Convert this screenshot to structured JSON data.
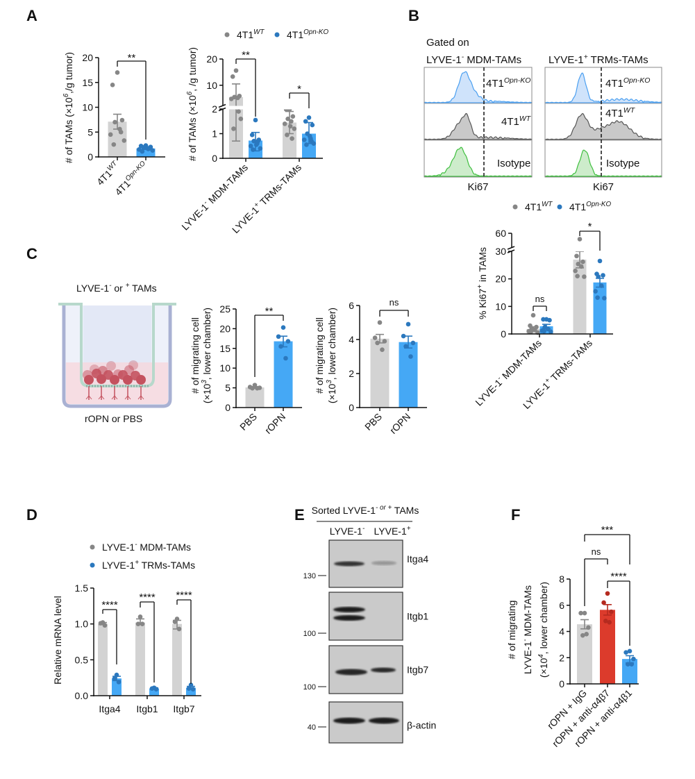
{
  "panels": {
    "A": "A",
    "B": "B",
    "C": "C",
    "D": "D",
    "E": "E",
    "F": "F"
  },
  "colors": {
    "wt": {
      "bar": "#d3d3d3",
      "dot": "#868686"
    },
    "ko": {
      "bar": "#45a8f5",
      "dot": "#2b78be"
    },
    "red": {
      "bar": "#dc3b2c",
      "dot": "#b52a1f"
    }
  },
  "legend": {
    "wt": [
      "4T1",
      "WT"
    ],
    "ko": [
      "4T1",
      "Opn-KO"
    ]
  },
  "flow": {
    "gated_on": "Gated on",
    "left_title": [
      "LYVE-1",
      "-",
      " MDM-TAMs"
    ],
    "right_title": [
      "LYVE-1",
      "+",
      " TRMs-TAMs"
    ],
    "rows": {
      "ko": [
        "4T1",
        "Opn-KO"
      ],
      "wt": [
        "4T1",
        "WT"
      ],
      "iso": "Isotype"
    },
    "xlabel": "Ki67"
  },
  "transwell": {
    "top": [
      "LYVE-1",
      "-",
      " or ",
      "+",
      " TAMs"
    ],
    "bottom": "rOPN or PBS"
  },
  "d_legend": [
    [
      "LYVE-1",
      "-",
      " MDM-TAMs"
    ],
    [
      "LYVE-1",
      "+",
      " TRMs-TAMs"
    ]
  ],
  "western": {
    "header": [
      "Sorted LYVE-1",
      "- or +",
      " TAMs"
    ],
    "lanes": [
      [
        "LYVE-1",
        "-"
      ],
      [
        "LYVE-1",
        "+"
      ]
    ],
    "proteins": [
      "Itga4",
      "Itgb1",
      "Itgb7",
      "β-actin"
    ],
    "markers": [
      "130",
      "100",
      "100",
      "40"
    ]
  },
  "chart_data": [
    {
      "id": "A1",
      "type": "bar",
      "ylabel": [
        [
          "# of TAMs (×10",
          "6",
          ",/g tumor)"
        ]
      ],
      "yticks": [
        "0",
        "5",
        "10",
        "15",
        "20"
      ],
      "ylim": [
        0,
        20
      ],
      "categories": [
        [
          "4T1",
          "WT"
        ],
        [
          "4T1",
          "Opn-KO"
        ]
      ],
      "bars": [
        {
          "series": "wt",
          "mean": 7.1,
          "err": [
            5.6,
            8.6
          ],
          "points": [
            17,
            14.5,
            7.4,
            7.0,
            5.6,
            4.5,
            3.3,
            2.5,
            5.0
          ]
        },
        {
          "series": "ko",
          "mean": 1.7,
          "err": [
            1.5,
            1.9
          ],
          "points": [
            2.3,
            2.2,
            2.0,
            1.9,
            1.6,
            1.5,
            1.3,
            1.1,
            1.7,
            1.8
          ]
        }
      ],
      "brackets": [
        {
          "pair": [
            0,
            1
          ],
          "label": "**"
        }
      ]
    },
    {
      "id": "A2",
      "type": "bar",
      "ylabel": [
        [
          "# of TAMs (×10",
          "6",
          ", /g tumor)"
        ]
      ],
      "yticks": [
        "0",
        "1",
        "2",
        "10",
        "20"
      ],
      "ylim": [
        0,
        20
      ],
      "axis_break": [
        2,
        2
      ],
      "categories": [
        [
          "LYVE-1",
          "-",
          " MDM-TAMs"
        ],
        [
          "LYVE-1",
          "+",
          " TRMs-TAMs"
        ]
      ],
      "bars": [
        {
          "series": "wt",
          "mean": 5.5,
          "err": [
            0.7,
            10.5
          ],
          "points": [
            15.6,
            13.3,
            5.9,
            5.5,
            5.2,
            4.8,
            1.6,
            1.2,
            1.9
          ]
        },
        {
          "series": "ko",
          "mean": 0.72,
          "err": [
            0.3,
            1.05
          ],
          "points": [
            1.55,
            0.95,
            0.75,
            0.7,
            0.6,
            0.5,
            0.4,
            0.35,
            0.7,
            0.55
          ]
        },
        {
          "series": "wt",
          "mean": 1.45,
          "err": [
            1.0,
            1.9
          ],
          "points": [
            1.98,
            1.98,
            1.7,
            1.6,
            1.5,
            1.4,
            1.2,
            0.95,
            0.8,
            1.3
          ]
        },
        {
          "series": "ko",
          "mean": 1.0,
          "err": [
            0.6,
            1.45
          ],
          "points": [
            1.65,
            1.5,
            1.35,
            1.0,
            0.8,
            0.75,
            0.6,
            0.55,
            0.7,
            0.9
          ]
        }
      ],
      "brackets": [
        {
          "pair": [
            0,
            1
          ],
          "label": "**"
        },
        {
          "pair": [
            2,
            3
          ],
          "label": "*"
        }
      ]
    },
    {
      "id": "B",
      "type": "bar",
      "ylabel": [
        [
          "% Ki67",
          "+",
          " in TAMs"
        ]
      ],
      "yticks": [
        "0",
        "10",
        "20",
        "30",
        "60"
      ],
      "ylim": [
        0,
        60
      ],
      "axis_break": [
        30,
        30
      ],
      "categories": [
        [
          "LYVE-1",
          "-",
          " MDM-TAMs"
        ],
        [
          "LYVE-1",
          "+",
          " TRMs-TAMs"
        ]
      ],
      "bars": [
        {
          "series": "wt",
          "mean": 1.8,
          "err": [
            1.0,
            2.6
          ],
          "points": [
            6.8,
            3,
            2.5,
            2,
            1.5,
            1,
            0.5,
            0.8
          ]
        },
        {
          "series": "ko",
          "mean": 2.8,
          "err": [
            2.0,
            3.5
          ],
          "points": [
            5.3,
            5.3,
            5.0,
            2.5,
            1.8,
            1.2,
            0.8,
            1.0
          ]
        },
        {
          "series": "wt",
          "mean": 27,
          "err": [
            24,
            30
          ],
          "points": [
            48,
            28.3,
            26.2,
            25.4,
            24.5,
            22.9,
            20.8,
            21
          ]
        },
        {
          "series": "ko",
          "mean": 18.7,
          "err": [
            17,
            20.2
          ],
          "points": [
            26.5,
            21.8,
            21.3,
            20.8,
            17.5,
            15.5,
            13,
            13.2
          ]
        }
      ],
      "brackets": [
        {
          "pair": [
            0,
            1
          ],
          "label": "ns"
        },
        {
          "pair": [
            2,
            3
          ],
          "label": "*"
        }
      ]
    },
    {
      "id": "C1",
      "type": "bar",
      "ylabel": [
        [
          "# of migrating cell"
        ],
        [
          "(×10",
          "3",
          ", lower chamber)"
        ]
      ],
      "yticks": [
        "0",
        "5",
        "10",
        "15",
        "20",
        "25"
      ],
      "ylim": [
        0,
        25
      ],
      "categories": [
        "PBS",
        "rOPN"
      ],
      "bars": [
        {
          "series": "wt",
          "mean": 5.1,
          "err": [
            4.9,
            5.3
          ],
          "points": [
            5.7,
            5.2,
            5.0,
            4.9,
            4.9
          ]
        },
        {
          "series": "ko",
          "mean": 16.8,
          "err": [
            15.4,
            18.1
          ],
          "points": [
            20.3,
            18,
            16.8,
            15.5,
            12.5
          ]
        }
      ],
      "brackets": [
        {
          "pair": [
            0,
            1
          ],
          "label": "**"
        }
      ]
    },
    {
      "id": "C2",
      "type": "bar",
      "ylabel": [
        [
          "# of migrating cell"
        ],
        [
          "(×10",
          "3",
          ", lower chamber)"
        ]
      ],
      "yticks": [
        "0",
        "2",
        "4",
        "6"
      ],
      "ylim": [
        0,
        6
      ],
      "categories": [
        "PBS",
        "rOPN"
      ],
      "bars": [
        {
          "series": "wt",
          "mean": 4.05,
          "err": [
            3.8,
            4.3
          ],
          "points": [
            5.0,
            4.1,
            3.9,
            3.8,
            3.4
          ]
        },
        {
          "series": "ko",
          "mean": 3.85,
          "err": [
            3.5,
            4.2
          ],
          "points": [
            4.9,
            4.2,
            3.8,
            3.6,
            3.0
          ]
        }
      ],
      "brackets": [
        {
          "pair": [
            0,
            1
          ],
          "label": "ns"
        }
      ]
    },
    {
      "id": "D",
      "type": "bar",
      "ylabel": [
        [
          "Relative mRNA level"
        ]
      ],
      "yticks": [
        "0.0",
        "0.5",
        "1.0",
        "1.5"
      ],
      "ylim": [
        0,
        1.5
      ],
      "categories": [
        "Itga4",
        "Itgb1",
        "Itgb7"
      ],
      "bars": [
        {
          "series": "wt",
          "mean": 1.0,
          "err": [
            0.99,
            1.02
          ],
          "points": [
            1.02,
            1.01,
            0.98
          ]
        },
        {
          "series": "ko",
          "mean": 0.24,
          "err": [
            0.21,
            0.27
          ],
          "points": [
            0.29,
            0.24,
            0.19
          ]
        },
        {
          "series": "wt",
          "mean": 1.02,
          "err": [
            1.0,
            1.07
          ],
          "points": [
            1.1,
            1.0,
            1.0
          ]
        },
        {
          "series": "ko",
          "mean": 0.1,
          "err": [
            0.09,
            0.11
          ],
          "points": [
            0.11,
            0.1,
            0.09
          ]
        },
        {
          "series": "wt",
          "mean": 1.0,
          "err": [
            0.93,
            1.05
          ],
          "points": [
            1.07,
            1.03,
            0.93
          ]
        },
        {
          "series": "ko",
          "mean": 0.11,
          "err": [
            0.09,
            0.13
          ],
          "points": [
            0.15,
            0.1,
            0.09
          ]
        }
      ],
      "brackets": [
        {
          "pair": [
            0,
            1
          ],
          "label": "****"
        },
        {
          "pair": [
            2,
            3
          ],
          "label": "****"
        },
        {
          "pair": [
            4,
            5
          ],
          "label": "****"
        }
      ]
    },
    {
      "id": "F",
      "type": "bar",
      "ylabel": [
        [
          "# of migrating"
        ],
        [
          "LYVE-1",
          "-",
          " MDM-TAMs"
        ],
        [
          "(×10",
          "4",
          ", lower chamber)"
        ]
      ],
      "yticks": [
        "0",
        "2",
        "4",
        "6",
        "8"
      ],
      "ylim": [
        0,
        8
      ],
      "categories": [
        "rOPN + IgG",
        "rOPN + anti-α4β7",
        "rOPN + anti-α4β1"
      ],
      "bars": [
        {
          "series": "wt",
          "mean": 4.55,
          "err": [
            4.2,
            4.9
          ],
          "points": [
            5.4,
            5.4,
            4.3,
            3.7,
            3.8
          ]
        },
        {
          "series": "red",
          "mean": 5.65,
          "err": [
            5.25,
            6.05
          ],
          "points": [
            6.9,
            6.2,
            5.5,
            4.8,
            4.7
          ]
        },
        {
          "series": "ko",
          "mean": 1.9,
          "err": [
            1.6,
            2.15
          ],
          "points": [
            2.5,
            2.4,
            1.9,
            1.5,
            1.5
          ]
        }
      ],
      "brackets": [
        {
          "pair": [
            0,
            1
          ],
          "label": "ns"
        },
        {
          "pair": [
            0,
            2
          ],
          "label": "***"
        },
        {
          "pair": [
            1,
            2
          ],
          "label": "****"
        }
      ]
    }
  ]
}
